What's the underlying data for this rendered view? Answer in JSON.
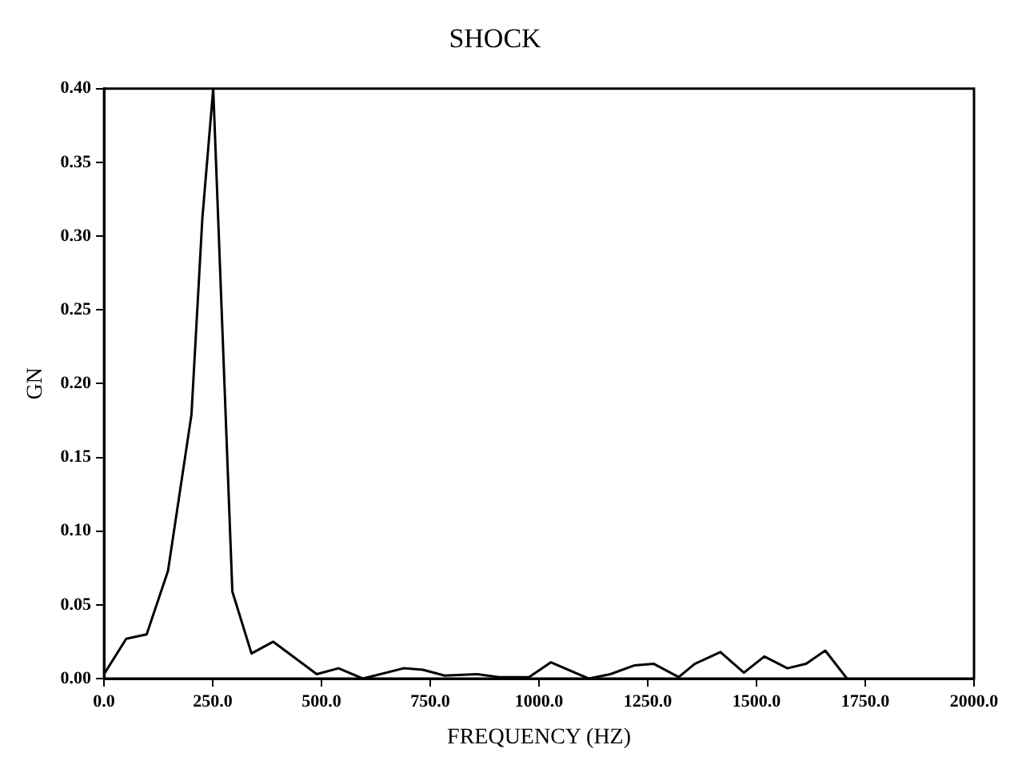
{
  "chart_data": {
    "type": "line",
    "title": "SHOCK",
    "xlabel": "FREQUENCY (HZ)",
    "ylabel": "GN",
    "x": [
      0,
      51,
      98,
      147,
      201,
      226,
      251,
      295,
      339,
      389,
      489,
      539,
      595,
      689,
      733,
      783,
      858,
      908,
      977,
      1027,
      1114,
      1164,
      1220,
      1264,
      1321,
      1358,
      1417,
      1471,
      1518,
      1571,
      1614,
      1658,
      1708
    ],
    "values": [
      0.003,
      0.027,
      0.03,
      0.073,
      0.179,
      0.312,
      0.4,
      0.059,
      0.017,
      0.025,
      0.003,
      0.007,
      0.0,
      0.007,
      0.006,
      0.002,
      0.003,
      0.001,
      0.001,
      0.011,
      0.0,
      0.003,
      0.009,
      0.01,
      0.001,
      0.01,
      0.018,
      0.004,
      0.015,
      0.007,
      0.01,
      0.019,
      0.0
    ],
    "color": "#000000",
    "xlim": [
      0,
      2000
    ],
    "xticks": [
      {
        "value": 0,
        "label": "0.0"
      },
      {
        "value": 250,
        "label": "250.0"
      },
      {
        "value": 500,
        "label": "500.0"
      },
      {
        "value": 750,
        "label": "750.0"
      },
      {
        "value": 1000,
        "label": "1000.0"
      },
      {
        "value": 1250,
        "label": "1250.0"
      },
      {
        "value": 1500,
        "label": "1500.0"
      },
      {
        "value": 1750,
        "label": "1750.0"
      },
      {
        "value": 2000,
        "label": "2000.0"
      }
    ],
    "ylim": [
      0,
      0.4
    ],
    "yticks": [
      {
        "value": 0,
        "label": "0.00"
      },
      {
        "value": 0.05,
        "label": "0.05"
      },
      {
        "value": 0.1,
        "label": "0.10"
      },
      {
        "value": 0.15,
        "label": "0.15"
      },
      {
        "value": 0.2,
        "label": "0.20"
      },
      {
        "value": 0.25,
        "label": "0.25"
      },
      {
        "value": 0.3,
        "label": "0.30"
      },
      {
        "value": 0.35,
        "label": "0.35"
      },
      {
        "value": 0.4,
        "label": "0.40"
      }
    ],
    "grid": false,
    "legend": false,
    "marker": "none",
    "line_style": "solid"
  }
}
